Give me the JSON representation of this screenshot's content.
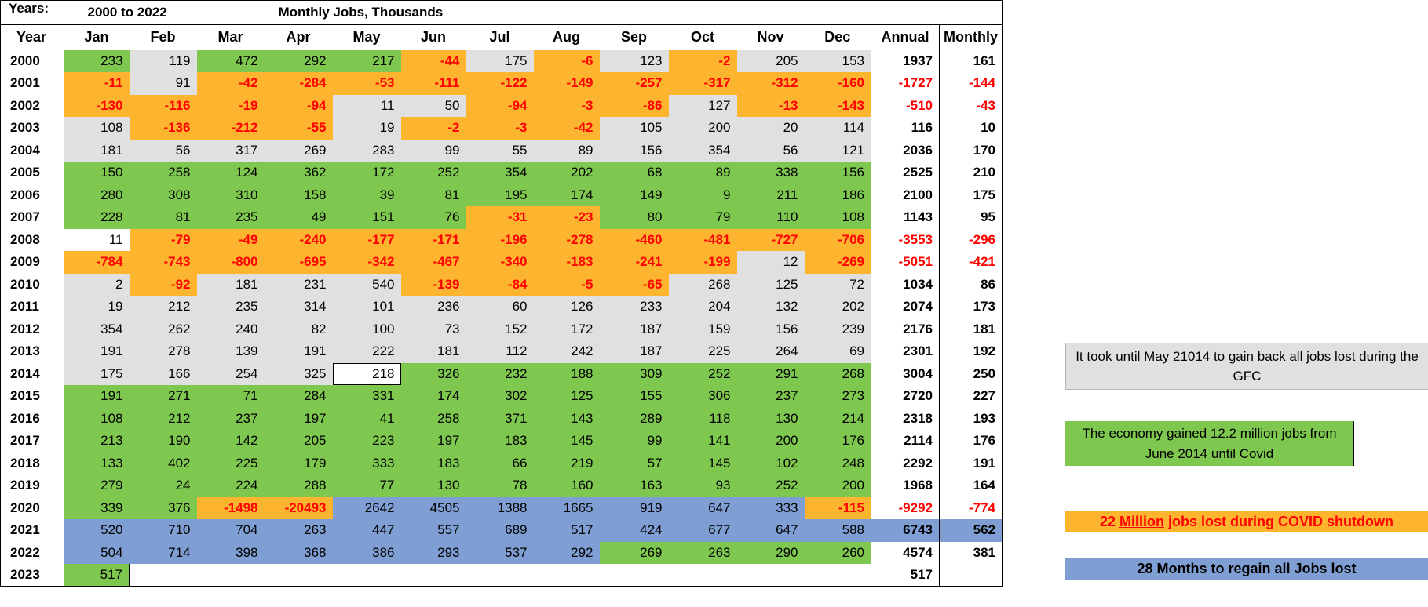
{
  "header": {
    "years_label": "Years:",
    "range": "2000 to 2022",
    "title": "Monthly Jobs, Thousands"
  },
  "columns": [
    "Year",
    "Jan",
    "Feb",
    "Mar",
    "Apr",
    "May",
    "Jun",
    "Jul",
    "Aug",
    "Sep",
    "Oct",
    "Nov",
    "Dec",
    "Annual",
    "Monthly"
  ],
  "rows": [
    {
      "year": "2000",
      "months": [
        233,
        119,
        472,
        292,
        217,
        -44,
        175,
        -6,
        123,
        -2,
        205,
        153
      ],
      "colors": [
        "g",
        "l",
        "g",
        "g",
        "g",
        "o",
        "l",
        "o",
        "l",
        "o",
        "l",
        "l"
      ],
      "annual": 1937,
      "monthly": 161,
      "tot_color": "w"
    },
    {
      "year": "2001",
      "months": [
        -11,
        91,
        -42,
        -284,
        -53,
        -111,
        -122,
        -149,
        -257,
        -317,
        -312,
        -160
      ],
      "colors": [
        "o",
        "l",
        "o",
        "o",
        "o",
        "o",
        "o",
        "o",
        "o",
        "o",
        "o",
        "o"
      ],
      "annual": -1727,
      "monthly": -144,
      "tot_color": "w"
    },
    {
      "year": "2002",
      "months": [
        -130,
        -116,
        -19,
        -94,
        11,
        50,
        -94,
        -3,
        -86,
        127,
        -13,
        -143
      ],
      "colors": [
        "o",
        "o",
        "o",
        "o",
        "l",
        "l",
        "o",
        "o",
        "o",
        "l",
        "o",
        "o"
      ],
      "annual": -510,
      "monthly": -43,
      "tot_color": "w"
    },
    {
      "year": "2003",
      "months": [
        108,
        -136,
        -212,
        -55,
        19,
        -2,
        -3,
        -42,
        105,
        200,
        20,
        114
      ],
      "colors": [
        "l",
        "o",
        "o",
        "o",
        "l",
        "o",
        "o",
        "o",
        "l",
        "l",
        "l",
        "l"
      ],
      "annual": 116,
      "monthly": 10,
      "tot_color": "w"
    },
    {
      "year": "2004",
      "months": [
        181,
        56,
        317,
        269,
        283,
        99,
        55,
        89,
        156,
        354,
        56,
        121
      ],
      "colors": [
        "l",
        "l",
        "l",
        "l",
        "l",
        "l",
        "l",
        "l",
        "l",
        "l",
        "l",
        "l"
      ],
      "annual": 2036,
      "monthly": 170,
      "tot_color": "w"
    },
    {
      "year": "2005",
      "months": [
        150,
        258,
        124,
        362,
        172,
        252,
        354,
        202,
        68,
        89,
        338,
        156
      ],
      "colors": [
        "g",
        "g",
        "g",
        "g",
        "g",
        "g",
        "g",
        "g",
        "g",
        "g",
        "g",
        "g"
      ],
      "annual": 2525,
      "monthly": 210,
      "tot_color": "w"
    },
    {
      "year": "2006",
      "months": [
        280,
        308,
        310,
        158,
        39,
        81,
        195,
        174,
        149,
        9,
        211,
        186
      ],
      "colors": [
        "g",
        "g",
        "g",
        "g",
        "g",
        "g",
        "g",
        "g",
        "g",
        "g",
        "g",
        "g"
      ],
      "annual": 2100,
      "monthly": 175,
      "tot_color": "w"
    },
    {
      "year": "2007",
      "months": [
        228,
        81,
        235,
        49,
        151,
        76,
        -31,
        -23,
        80,
        79,
        110,
        108
      ],
      "colors": [
        "g",
        "g",
        "g",
        "g",
        "g",
        "g",
        "o",
        "o",
        "g",
        "g",
        "g",
        "g"
      ],
      "annual": 1143,
      "monthly": 95,
      "tot_color": "w"
    },
    {
      "year": "2008",
      "months": [
        11,
        -79,
        -49,
        -240,
        -177,
        -171,
        -196,
        -278,
        -460,
        -481,
        -727,
        -706
      ],
      "colors": [
        "w",
        "o",
        "o",
        "o",
        "o",
        "o",
        "o",
        "o",
        "o",
        "o",
        "o",
        "o"
      ],
      "annual": -3553,
      "monthly": -296,
      "tot_color": "w"
    },
    {
      "year": "2009",
      "months": [
        -784,
        -743,
        -800,
        -695,
        -342,
        -467,
        -340,
        -183,
        -241,
        -199,
        12,
        -269
      ],
      "colors": [
        "o",
        "o",
        "o",
        "o",
        "o",
        "o",
        "o",
        "o",
        "o",
        "o",
        "l",
        "o"
      ],
      "annual": -5051,
      "monthly": -421,
      "tot_color": "w"
    },
    {
      "year": "2010",
      "months": [
        2,
        -92,
        181,
        231,
        540,
        -139,
        -84,
        -5,
        -65,
        268,
        125,
        72
      ],
      "colors": [
        "l",
        "o",
        "l",
        "l",
        "l",
        "o",
        "o",
        "o",
        "o",
        "l",
        "l",
        "l"
      ],
      "annual": 1034,
      "monthly": 86,
      "tot_color": "w"
    },
    {
      "year": "2011",
      "months": [
        19,
        212,
        235,
        314,
        101,
        236,
        60,
        126,
        233,
        204,
        132,
        202
      ],
      "colors": [
        "l",
        "l",
        "l",
        "l",
        "l",
        "l",
        "l",
        "l",
        "l",
        "l",
        "l",
        "l"
      ],
      "annual": 2074,
      "monthly": 173,
      "tot_color": "w"
    },
    {
      "year": "2012",
      "months": [
        354,
        262,
        240,
        82,
        100,
        73,
        152,
        172,
        187,
        159,
        156,
        239
      ],
      "colors": [
        "l",
        "l",
        "l",
        "l",
        "l",
        "l",
        "l",
        "l",
        "l",
        "l",
        "l",
        "l"
      ],
      "annual": 2176,
      "monthly": 181,
      "tot_color": "w"
    },
    {
      "year": "2013",
      "months": [
        191,
        278,
        139,
        191,
        222,
        181,
        112,
        242,
        187,
        225,
        264,
        69
      ],
      "colors": [
        "l",
        "l",
        "l",
        "l",
        "l",
        "l",
        "l",
        "l",
        "l",
        "l",
        "l",
        "l"
      ],
      "annual": 2301,
      "monthly": 192,
      "tot_color": "w"
    },
    {
      "year": "2014",
      "months": [
        175,
        166,
        254,
        325,
        218,
        326,
        232,
        188,
        309,
        252,
        291,
        268
      ],
      "colors": [
        "l",
        "l",
        "l",
        "l",
        "w",
        "g",
        "g",
        "g",
        "g",
        "g",
        "g",
        "g"
      ],
      "annual": 3004,
      "monthly": 250,
      "tot_color": "w"
    },
    {
      "year": "2015",
      "months": [
        191,
        271,
        71,
        284,
        331,
        174,
        302,
        125,
        155,
        306,
        237,
        273
      ],
      "colors": [
        "g",
        "g",
        "g",
        "g",
        "g",
        "g",
        "g",
        "g",
        "g",
        "g",
        "g",
        "g"
      ],
      "annual": 2720,
      "monthly": 227,
      "tot_color": "w"
    },
    {
      "year": "2016",
      "months": [
        108,
        212,
        237,
        197,
        41,
        258,
        371,
        143,
        289,
        118,
        130,
        214
      ],
      "colors": [
        "g",
        "g",
        "g",
        "g",
        "g",
        "g",
        "g",
        "g",
        "g",
        "g",
        "g",
        "g"
      ],
      "annual": 2318,
      "monthly": 193,
      "tot_color": "w"
    },
    {
      "year": "2017",
      "months": [
        213,
        190,
        142,
        205,
        223,
        197,
        183,
        145,
        99,
        141,
        200,
        176
      ],
      "colors": [
        "g",
        "g",
        "g",
        "g",
        "g",
        "g",
        "g",
        "g",
        "g",
        "g",
        "g",
        "g"
      ],
      "annual": 2114,
      "monthly": 176,
      "tot_color": "w"
    },
    {
      "year": "2018",
      "months": [
        133,
        402,
        225,
        179,
        333,
        183,
        66,
        219,
        57,
        145,
        102,
        248
      ],
      "colors": [
        "g",
        "g",
        "g",
        "g",
        "g",
        "g",
        "g",
        "g",
        "g",
        "g",
        "g",
        "g"
      ],
      "annual": 2292,
      "monthly": 191,
      "tot_color": "w"
    },
    {
      "year": "2019",
      "months": [
        279,
        24,
        224,
        288,
        77,
        130,
        78,
        160,
        163,
        93,
        252,
        200
      ],
      "colors": [
        "g",
        "g",
        "g",
        "g",
        "g",
        "g",
        "g",
        "g",
        "g",
        "g",
        "g",
        "g"
      ],
      "annual": 1968,
      "monthly": 164,
      "tot_color": "w"
    },
    {
      "year": "2020",
      "months": [
        339,
        376,
        -1498,
        -20493,
        2642,
        4505,
        1388,
        1665,
        919,
        647,
        333,
        -115
      ],
      "colors": [
        "g",
        "g",
        "o",
        "o",
        "b",
        "b",
        "b",
        "b",
        "b",
        "b",
        "b",
        "o"
      ],
      "annual": -9292,
      "monthly": -774,
      "tot_color": "w"
    },
    {
      "year": "2021",
      "months": [
        520,
        710,
        704,
        263,
        447,
        557,
        689,
        517,
        424,
        677,
        647,
        588
      ],
      "colors": [
        "b",
        "b",
        "b",
        "b",
        "b",
        "b",
        "b",
        "b",
        "b",
        "b",
        "b",
        "b"
      ],
      "annual": 6743,
      "monthly": 562,
      "tot_color": "b"
    },
    {
      "year": "2022",
      "months": [
        504,
        714,
        398,
        368,
        386,
        293,
        537,
        292,
        269,
        263,
        290,
        260
      ],
      "colors": [
        "b",
        "b",
        "b",
        "b",
        "b",
        "b",
        "b",
        "b",
        "g",
        "g",
        "g",
        "g"
      ],
      "annual": 4574,
      "monthly": 381,
      "tot_color": "w"
    },
    {
      "year": "2023",
      "months": [
        517
      ],
      "colors": [
        "g"
      ],
      "annual": 517,
      "monthly": null,
      "tot_color": "w"
    }
  ],
  "notes": {
    "gfc": "It took until May 21014 to gain back all jobs lost during the GFC",
    "gain": "The economy gained 12.2 million jobs from June 2014 until Covid",
    "covid_prefix": "22 ",
    "covid_million": "Million",
    "covid_suffix": " jobs lost during COVID shutdown",
    "regain": "28 Months to regain all Jobs lost"
  },
  "colors": {
    "green": "#7ec850",
    "orange": "#fdb52f",
    "light_gray": "#e0e0e0",
    "blue": "#7f9fd4",
    "negative_text": "#ff0000"
  }
}
